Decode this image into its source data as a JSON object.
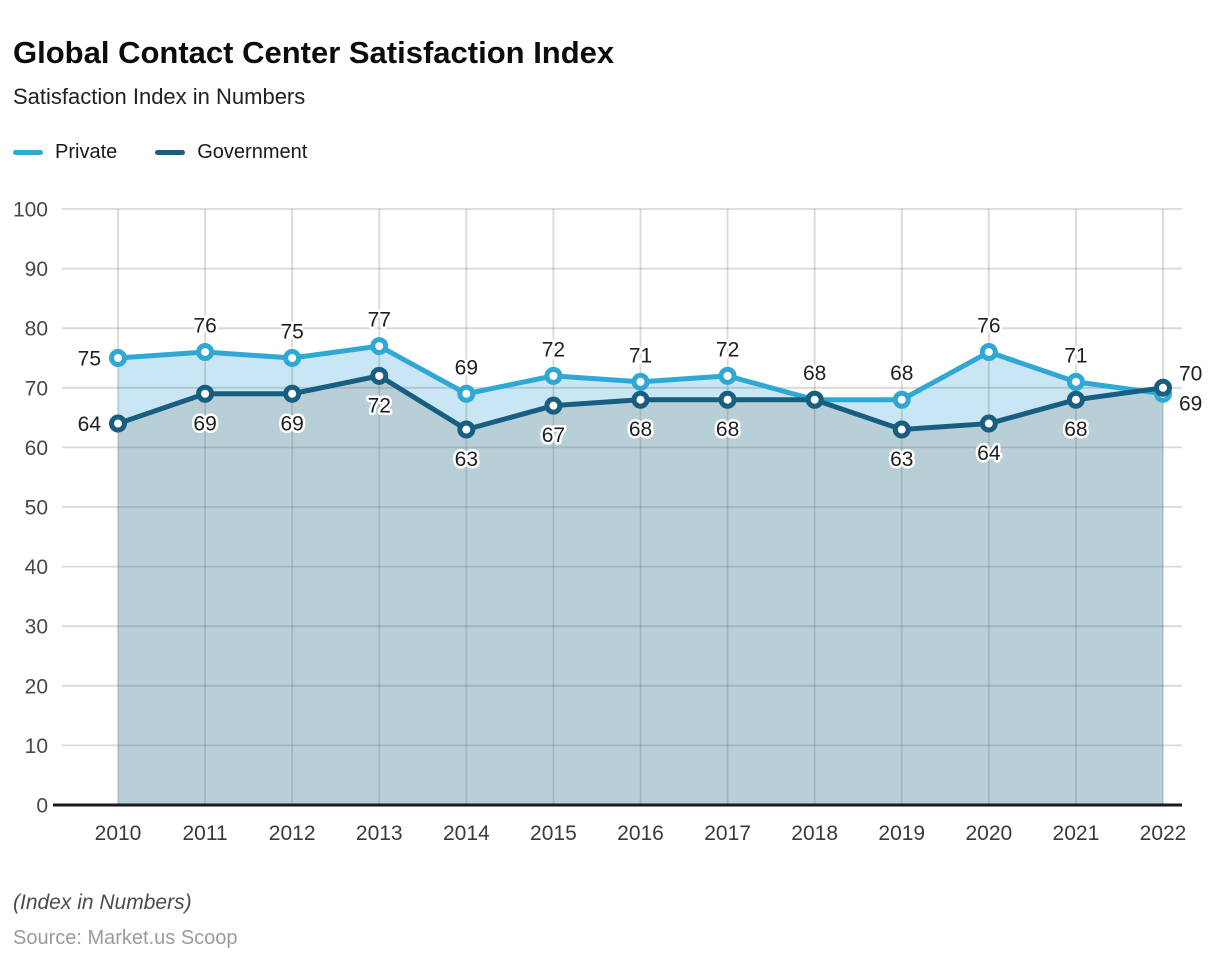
{
  "chart_data": {
    "type": "line-area",
    "title": "Global Contact Center Satisfaction Index",
    "subtitle": "Satisfaction Index in Numbers",
    "footnote": "(Index in Numbers)",
    "source": "Source: Market.us Scoop",
    "categories": [
      "2010",
      "2011",
      "2012",
      "2013",
      "2014",
      "2015",
      "2016",
      "2017",
      "2018",
      "2019",
      "2020",
      "2021",
      "2022"
    ],
    "xlabel": "",
    "ylabel": "",
    "ylim": [
      0,
      100
    ],
    "grid": true,
    "legend_position": "top-left",
    "axis": {
      "y_ticks": [
        0,
        10,
        20,
        30,
        40,
        50,
        60,
        70,
        80,
        90,
        100
      ]
    },
    "series": [
      {
        "name": "Private",
        "color": "#2FA8D5",
        "fill": "#C8E6F3",
        "values": [
          75,
          76,
          75,
          77,
          69,
          72,
          71,
          72,
          68,
          68,
          76,
          71,
          69
        ],
        "label_positions": [
          "left",
          "above",
          "above",
          "above",
          "above",
          "above",
          "above",
          "above",
          "above",
          "above",
          "above",
          "above",
          "right-below"
        ]
      },
      {
        "name": "Government",
        "color": "#175E80",
        "fill": "#B9CFD8",
        "values": [
          64,
          69,
          69,
          72,
          63,
          67,
          68,
          68,
          68,
          63,
          64,
          68,
          70
        ],
        "label_positions": [
          "left",
          "below",
          "below",
          "below",
          "below",
          "below",
          "below",
          "below",
          "none",
          "below",
          "below",
          "below",
          "right-above"
        ]
      }
    ]
  },
  "colors": {
    "grid": "rgba(108,115,119,0.27)",
    "axis": "#1a1a1a",
    "tick_label": "#484848",
    "value_label": "#1f1f1f",
    "background": "#ffffff"
  }
}
